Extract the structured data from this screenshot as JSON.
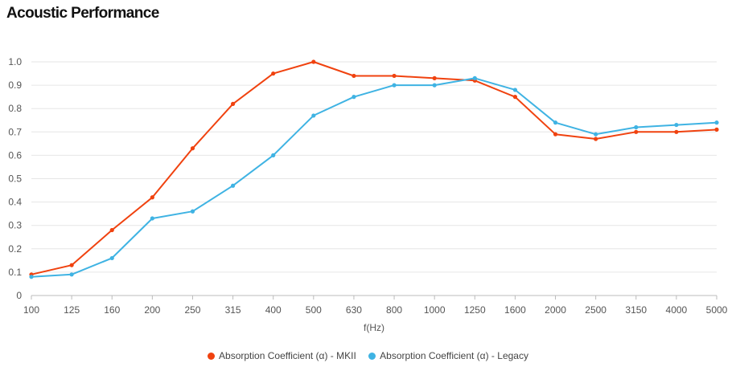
{
  "title": "Acoustic Performance",
  "chart_data": {
    "type": "line",
    "categories": [
      "100",
      "125",
      "160",
      "200",
      "250",
      "315",
      "400",
      "500",
      "630",
      "800",
      "1000",
      "1250",
      "1600",
      "2000",
      "2500",
      "3150",
      "4000",
      "5000"
    ],
    "xlabel": "f(Hz)",
    "ylabel": "",
    "ylim": [
      0,
      1.0
    ],
    "yticks": [
      "0",
      "0.1",
      "0.2",
      "0.3",
      "0.4",
      "0.5",
      "0.6",
      "0.7",
      "0.8",
      "0.9",
      "1.0"
    ],
    "grid": true,
    "legend_position": "bottom",
    "series": [
      {
        "name": "Absorption Coefficient (α) - MKII",
        "color": "#f0420f",
        "values": [
          0.09,
          0.13,
          0.28,
          0.42,
          0.63,
          0.82,
          0.95,
          1.0,
          0.94,
          0.94,
          0.93,
          0.92,
          0.85,
          0.69,
          0.67,
          0.7,
          0.7,
          0.71
        ]
      },
      {
        "name": "Absorption Coefficient (α) - Legacy",
        "color": "#3fb3e3",
        "values": [
          0.08,
          0.09,
          0.16,
          0.33,
          0.36,
          0.47,
          0.6,
          0.77,
          0.85,
          0.9,
          0.9,
          0.93,
          0.88,
          0.74,
          0.69,
          0.72,
          0.73,
          0.74
        ]
      }
    ]
  }
}
